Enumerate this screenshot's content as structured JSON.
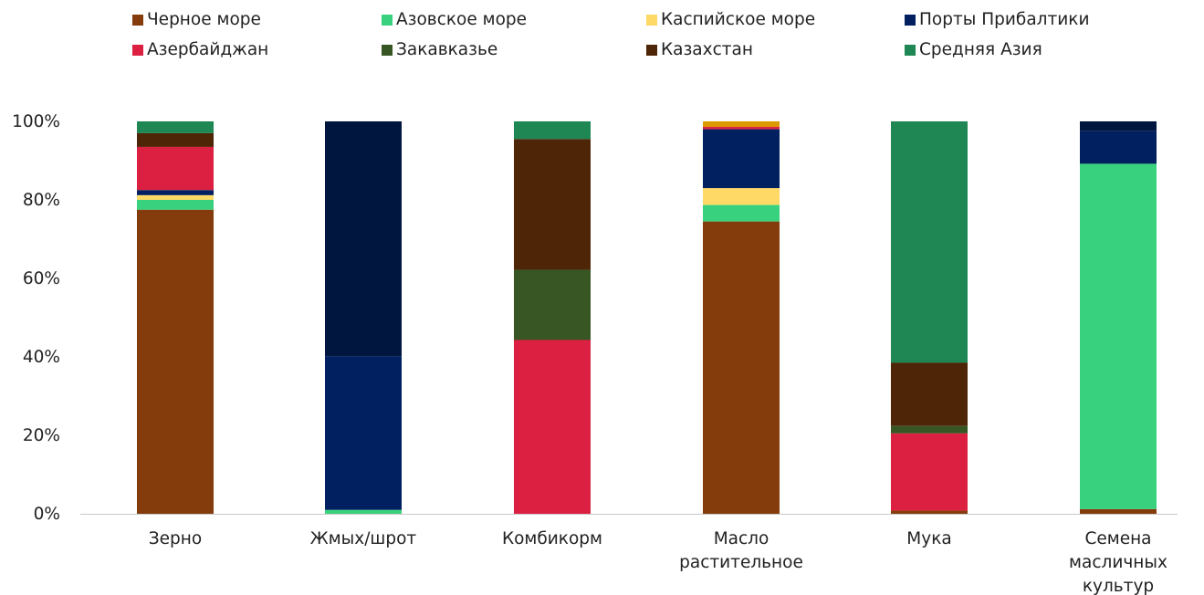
{
  "chart_data": {
    "type": "bar",
    "stacked": true,
    "title": "",
    "xlabel": "",
    "ylabel": "",
    "ylim": [
      0,
      100
    ],
    "y_ticks": [
      "0%",
      "20%",
      "40%",
      "60%",
      "80%",
      "100%"
    ],
    "grid": false,
    "legend_position": "top",
    "categories": [
      [
        "Зерно"
      ],
      [
        "Жмых/шрот"
      ],
      [
        "Комбикорм"
      ],
      [
        "Масло",
        "растительное"
      ],
      [
        "Мука"
      ],
      [
        "Семена",
        "масличных",
        "культур"
      ]
    ],
    "series": [
      {
        "name": "Черное море",
        "color": "#843c0c",
        "values": [
          77.5,
          0,
          0,
          74.5,
          0.8,
          1.2
        ]
      },
      {
        "name": "Азовское море",
        "color": "#38d27e",
        "values": [
          2.5,
          1.0,
          0,
          4.2,
          0,
          88.0
        ]
      },
      {
        "name": "Каспийское море",
        "color": "#ffd966",
        "values": [
          1.2,
          0,
          0,
          4.3,
          0,
          0
        ]
      },
      {
        "name": "Порты Прибалтики",
        "color": "#002060",
        "values": [
          1.3,
          39.2,
          0,
          15.0,
          0,
          8.3
        ]
      },
      {
        "name": "Азербайджан",
        "color": "#dc2042",
        "values": [
          11.0,
          0,
          44.3,
          0.6,
          19.7,
          0
        ]
      },
      {
        "name": "Закавказье",
        "color": "#375623",
        "values": [
          0,
          0,
          17.9,
          0,
          1.9,
          0
        ]
      },
      {
        "name": "Казахстан",
        "color": "#4f2507",
        "values": [
          3.5,
          0,
          33.3,
          0,
          16.1,
          0
        ]
      },
      {
        "name": "Средняя Азия",
        "color": "#1e8753",
        "values": [
          3.0,
          0,
          4.5,
          0,
          61.5,
          0
        ]
      },
      {
        "name": "",
        "color": "#00163f",
        "values": [
          0,
          59.8,
          0,
          0,
          0,
          2.5
        ]
      },
      {
        "name": "",
        "color": "#dc9a00",
        "values": [
          0,
          0,
          0,
          1.4,
          0,
          0
        ]
      }
    ]
  }
}
